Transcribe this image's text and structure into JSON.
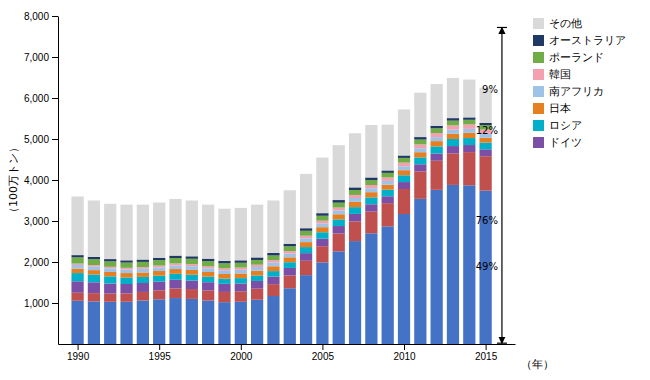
{
  "chart_data": {
    "type": "bar",
    "stacked": true,
    "x": [
      1990,
      1991,
      1992,
      1993,
      1994,
      1995,
      1996,
      1997,
      1998,
      1999,
      2000,
      2001,
      2002,
      2003,
      2004,
      2005,
      2006,
      2007,
      2008,
      2009,
      2010,
      2011,
      2012,
      2013,
      2014,
      2015
    ],
    "series": [
      {
        "name": null,
        "color": "#4472c4",
        "values": [
          1055,
          1040,
          1030,
          1030,
          1060,
          1090,
          1120,
          1100,
          1060,
          1020,
          1030,
          1080,
          1170,
          1360,
          1680,
          1990,
          2260,
          2510,
          2700,
          2870,
          3170,
          3540,
          3760,
          3880,
          3870,
          3740
        ]
      },
      {
        "name": null,
        "color": "#c0504d",
        "values": [
          195,
          200,
          200,
          205,
          210,
          220,
          235,
          240,
          245,
          250,
          255,
          270,
          290,
          310,
          350,
          395,
          435,
          480,
          530,
          565,
          610,
          670,
          710,
          770,
          810,
          840
        ]
      },
      {
        "name": "ドイツ",
        "color": "#7b4fa5",
        "values": [
          280,
          265,
          245,
          228,
          218,
          212,
          212,
          208,
          202,
          198,
          192,
          188,
          185,
          185,
          186,
          183,
          182,
          183,
          178,
          168,
          170,
          173,
          177,
          178,
          173,
          168
        ]
      },
      {
        "name": "ロシア",
        "color": "#00b0c8",
        "values": [
          200,
          190,
          175,
          160,
          148,
          145,
          145,
          142,
          135,
          128,
          130,
          133,
          133,
          140,
          148,
          158,
          162,
          165,
          168,
          162,
          165,
          168,
          172,
          172,
          170,
          165
        ]
      },
      {
        "name": "日本",
        "color": "#e67e22",
        "values": [
          108,
          107,
          107,
          107,
          109,
          113,
          116,
          117,
          114,
          112,
          114,
          117,
          118,
          119,
          121,
          123,
          125,
          129,
          127,
          119,
          124,
          127,
          129,
          131,
          129,
          119
        ]
      },
      {
        "name": "南アフリカ",
        "color": "#9dc3e6",
        "values": [
          89,
          87,
          87,
          87,
          87,
          88,
          89,
          90,
          89,
          88,
          89,
          90,
          90,
          90,
          91,
          92,
          93,
          94,
          96,
          94,
          95,
          96,
          97,
          97,
          96,
          94
        ]
      },
      {
        "name": "韓国",
        "color": "#f4a0b0",
        "values": [
          34,
          36,
          39,
          41,
          43,
          45,
          47,
          49,
          49,
          51,
          53,
          56,
          58,
          61,
          65,
          67,
          71,
          75,
          79,
          83,
          89,
          94,
          99,
          104,
          107,
          104
        ]
      },
      {
        "name": "ポーランド",
        "color": "#70ad47",
        "values": [
          153,
          143,
          133,
          128,
          128,
          133,
          133,
          133,
          128,
          121,
          118,
          116,
          116,
          118,
          120,
          120,
          119,
          120,
          120,
          113,
          116,
          118,
          118,
          116,
          113,
          108
        ]
      },
      {
        "name": "オーストラリア",
        "color": "#1f3864",
        "values": [
          54,
          54,
          55,
          55,
          57,
          58,
          59,
          60,
          59,
          59,
          60,
          61,
          61,
          62,
          63,
          63,
          64,
          64,
          64,
          59,
          59,
          61,
          61,
          61,
          59,
          54
        ]
      },
      {
        "name": "その他",
        "color": "#d9d9d9",
        "values": [
          1430,
          1378,
          1349,
          1359,
          1340,
          1346,
          1383,
          1361,
          1319,
          1273,
          1279,
          1289,
          1279,
          1305,
          1326,
          1357,
          1339,
          1320,
          1278,
          1117,
          1122,
          1083,
          1017,
          981,
          923,
          858
        ]
      }
    ],
    "xlim": [
      1988.8,
      2016.8
    ],
    "xticks": [
      1990,
      1995,
      2000,
      2005,
      2010,
      2015
    ],
    "ylim": [
      0,
      8000
    ],
    "yticks": [
      {
        "value": 1000,
        "label": "1,000"
      },
      {
        "value": 2000,
        "label": "2,000"
      },
      {
        "value": 3000,
        "label": "3,000"
      },
      {
        "value": 4000,
        "label": "4,000"
      },
      {
        "value": 5000,
        "label": "5,000"
      },
      {
        "value": 6000,
        "label": "6,000"
      },
      {
        "value": 7000,
        "label": "7,000"
      },
      {
        "value": 8000,
        "label": "8,000"
      }
    ],
    "ylabel": "（100万トン）",
    "xlabel": "（年）",
    "legend": "right",
    "annotations": [
      {
        "x": 2016,
        "y": [
          20,
          7720
        ]
      },
      {
        "text": "9%",
        "x": 2016,
        "y": 6200
      },
      {
        "text": "12%",
        "x": 2016,
        "y": 5200
      },
      {
        "text": "76%",
        "x": 2016,
        "y": 3000
      },
      {
        "text": "49%",
        "x": 2016,
        "y": 1870
      }
    ]
  }
}
